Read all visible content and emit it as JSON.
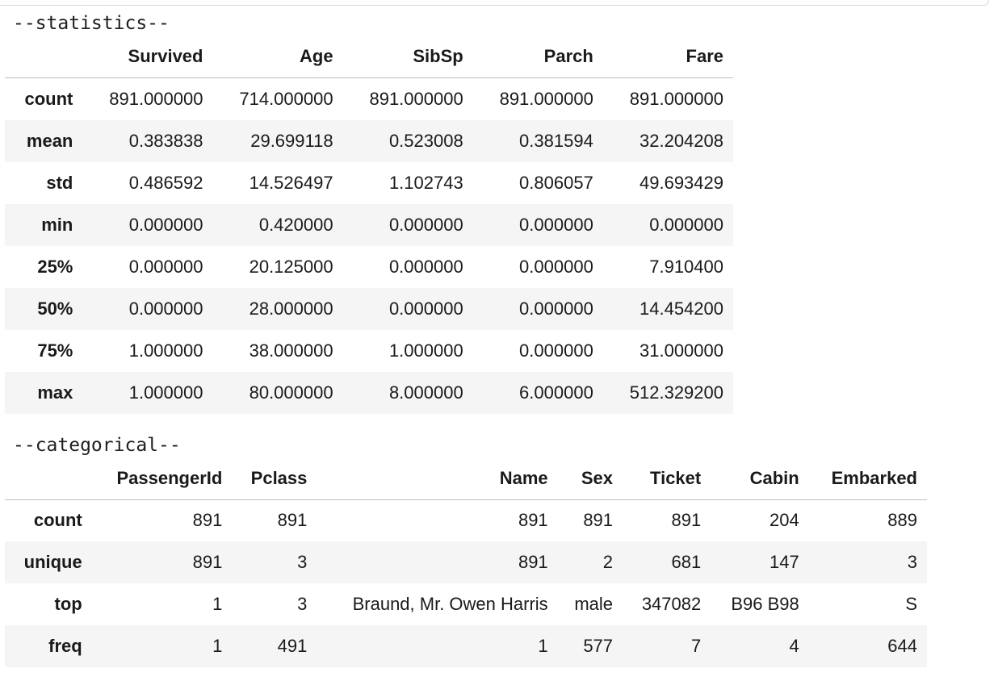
{
  "statistics": {
    "heading": "--statistics--",
    "columns": [
      "Survived",
      "Age",
      "SibSp",
      "Parch",
      "Fare"
    ],
    "rows": [
      {
        "label": "count",
        "values": [
          "891.000000",
          "714.000000",
          "891.000000",
          "891.000000",
          "891.000000"
        ]
      },
      {
        "label": "mean",
        "values": [
          "0.383838",
          "29.699118",
          "0.523008",
          "0.381594",
          "32.204208"
        ]
      },
      {
        "label": "std",
        "values": [
          "0.486592",
          "14.526497",
          "1.102743",
          "0.806057",
          "49.693429"
        ]
      },
      {
        "label": "min",
        "values": [
          "0.000000",
          "0.420000",
          "0.000000",
          "0.000000",
          "0.000000"
        ]
      },
      {
        "label": "25%",
        "values": [
          "0.000000",
          "20.125000",
          "0.000000",
          "0.000000",
          "7.910400"
        ]
      },
      {
        "label": "50%",
        "values": [
          "0.000000",
          "28.000000",
          "0.000000",
          "0.000000",
          "14.454200"
        ]
      },
      {
        "label": "75%",
        "values": [
          "1.000000",
          "38.000000",
          "1.000000",
          "0.000000",
          "31.000000"
        ]
      },
      {
        "label": "max",
        "values": [
          "1.000000",
          "80.000000",
          "8.000000",
          "6.000000",
          "512.329200"
        ]
      }
    ]
  },
  "categorical": {
    "heading": "--categorical--",
    "columns": [
      "PassengerId",
      "Pclass",
      "Name",
      "Sex",
      "Ticket",
      "Cabin",
      "Embarked"
    ],
    "rows": [
      {
        "label": "count",
        "values": [
          "891",
          "891",
          "891",
          "891",
          "891",
          "204",
          "889"
        ]
      },
      {
        "label": "unique",
        "values": [
          "891",
          "3",
          "891",
          "2",
          "681",
          "147",
          "3"
        ]
      },
      {
        "label": "top",
        "values": [
          "1",
          "3",
          "Braund, Mr. Owen Harris",
          "male",
          "347082",
          "B96 B98",
          "S"
        ]
      },
      {
        "label": "freq",
        "values": [
          "1",
          "491",
          "1",
          "577",
          "7",
          "4",
          "644"
        ]
      }
    ]
  }
}
